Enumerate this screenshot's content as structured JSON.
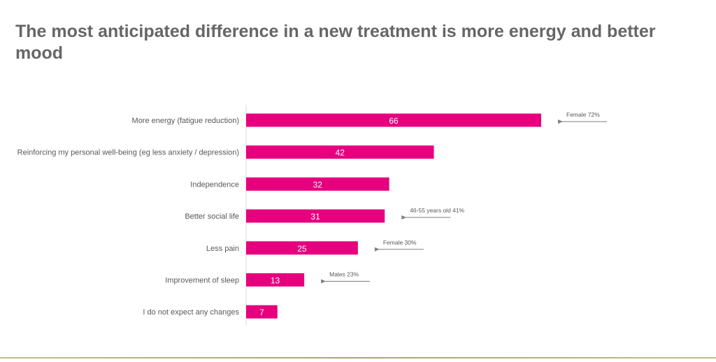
{
  "title": "The most anticipated difference in a new treatment is more energy and better mood",
  "chart_data": {
    "type": "bar",
    "orientation": "horizontal",
    "bar_color": "#e6007e",
    "categories": [
      "More energy (fatigue reduction)",
      "Reinforcing my personal well-being (eg less anxiety / depression)",
      "Independence",
      "Better social life",
      "Less pain",
      "Improvement of sleep",
      "I do not expect any changes"
    ],
    "values": [
      66,
      42,
      32,
      31,
      25,
      13,
      7
    ],
    "annotations": [
      {
        "category_index": 0,
        "text": "Female 72%",
        "value": 72
      },
      {
        "category_index": 3,
        "text": "46-55 years old 41%",
        "value": 41
      },
      {
        "category_index": 4,
        "text": "Female 30%",
        "value": 30
      },
      {
        "category_index": 5,
        "text": "Males 23%",
        "value": 23
      }
    ],
    "xlim": [
      0,
      66
    ],
    "grid": false,
    "legend": "none"
  }
}
